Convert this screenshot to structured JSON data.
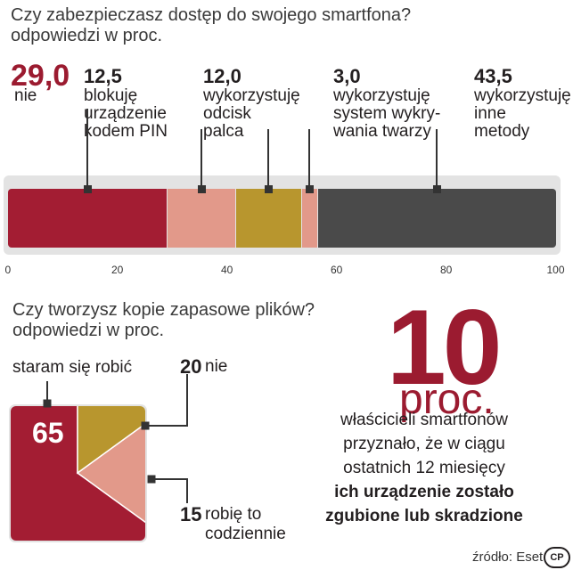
{
  "chart_data": [
    {
      "type": "bar",
      "title": "Czy zabezpieczasz dostęp do swojego smartfona?",
      "subtitle": "odpowiedzi w proc.",
      "xlim": [
        0,
        100
      ],
      "ticks": [
        "0",
        "20",
        "40",
        "60",
        "80",
        "100"
      ],
      "categories": [
        "nie",
        "blokuję urządzenie kodem PIN",
        "wykorzystuję odcisk palca",
        "wykorzystuję system wykrywania twarzy",
        "wykorzystuję inne metody"
      ],
      "values": [
        29.0,
        12.5,
        12.0,
        3.0,
        43.5
      ],
      "value_labels": [
        "29,0",
        "12,5",
        "12,0",
        "3,0",
        "43,5"
      ],
      "label_lines": [
        [
          "nie"
        ],
        [
          "blokuję",
          "urządzenie",
          "kodem PIN"
        ],
        [
          "wykorzystuję",
          "odcisk",
          "palca"
        ],
        [
          "wykorzystuję",
          "system wykry-",
          "wania twarzy"
        ],
        [
          "wykorzystuję",
          "inne",
          "metody"
        ]
      ],
      "colors": [
        "#a31d33",
        "#e2998a",
        "#b8962e",
        "#e2998a",
        "#4a4a4a"
      ]
    },
    {
      "type": "pie",
      "title": "Czy tworzysz kopie zapasowe plików?",
      "subtitle": "odpowiedzi w proc.",
      "categories": [
        "staram się robić",
        "nie",
        "robię to codziennie"
      ],
      "values": [
        65,
        20,
        15
      ],
      "value_labels": [
        "65",
        "20",
        "15"
      ],
      "label_lines": [
        [
          "staram się robić"
        ],
        [
          "nie"
        ],
        [
          "robię to",
          "codziennie"
        ]
      ],
      "colors": [
        "#a31d33",
        "#e2998a",
        "#b8962e"
      ]
    }
  ],
  "stat": {
    "number": "10",
    "unit": "proc.",
    "lines": [
      "właścicieli smartfonów",
      "przyznało, że w ciągu",
      "ostatnich 12 miesięcy"
    ],
    "bold_lines": [
      "ich urządzenie zostało",
      "zgubione lub skradzione"
    ]
  },
  "source": "źródło: Eset",
  "logo": "CP"
}
